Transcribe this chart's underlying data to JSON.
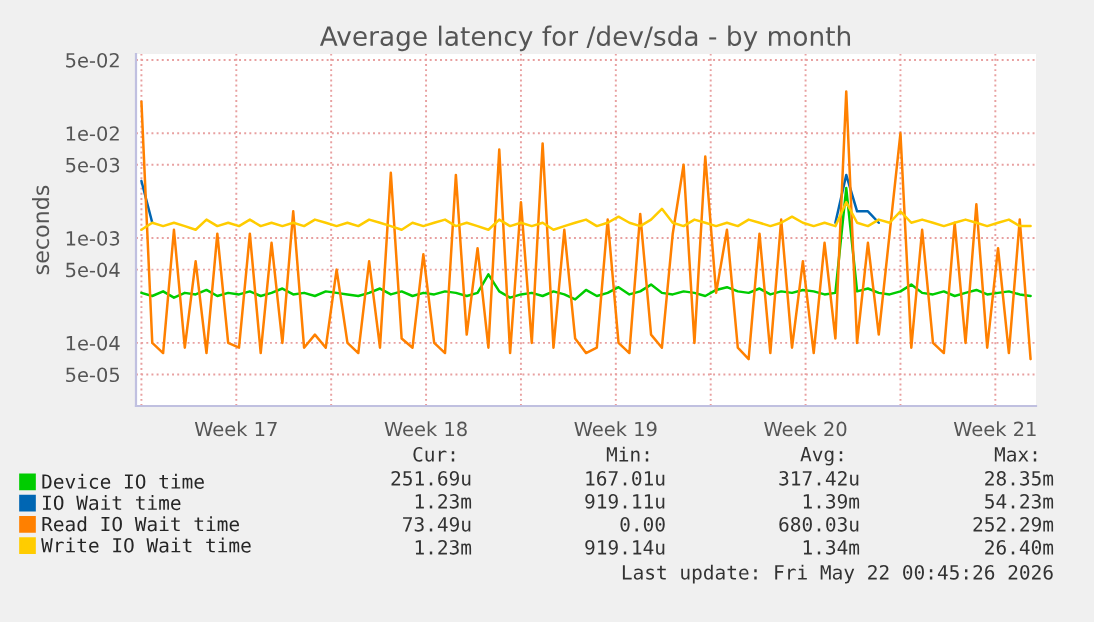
{
  "chart_data": {
    "type": "line",
    "title": "Average latency for /dev/sda - by month",
    "ylabel": "seconds",
    "log": "y",
    "grid": true,
    "legend": "bottom",
    "marker": "none",
    "line_style": "solid",
    "x": [
      "2026-04-20T00:00",
      "2026-04-20T09:36",
      "2026-04-20T19:12",
      "2026-04-21T04:48",
      "2026-04-21T14:24",
      "2026-04-22T00:00",
      "2026-04-22T09:36",
      "2026-04-22T19:12",
      "2026-04-23T04:48",
      "2026-04-23T14:24",
      "2026-04-24T00:00",
      "2026-04-24T09:36",
      "2026-04-24T19:12",
      "2026-04-25T04:48",
      "2026-04-25T14:24",
      "2026-04-26T00:00",
      "2026-04-26T09:36",
      "2026-04-26T19:12",
      "2026-04-27T04:48",
      "2026-04-27T14:24",
      "2026-04-28T00:00",
      "2026-04-28T09:36",
      "2026-04-28T19:12",
      "2026-04-29T04:48",
      "2026-04-29T14:24",
      "2026-04-30T00:00",
      "2026-04-30T09:36",
      "2026-04-30T19:12",
      "2026-05-01T04:48",
      "2026-05-01T14:24",
      "2026-05-02T00:00",
      "2026-05-02T09:36",
      "2026-05-02T19:12",
      "2026-05-03T04:48",
      "2026-05-03T14:24",
      "2026-05-04T00:00",
      "2026-05-04T09:36",
      "2026-05-04T19:12",
      "2026-05-05T04:48",
      "2026-05-05T14:24",
      "2026-05-06T00:00",
      "2026-05-06T09:36",
      "2026-05-06T19:12",
      "2026-05-07T04:48",
      "2026-05-07T14:24",
      "2026-05-08T00:00",
      "2026-05-08T09:36",
      "2026-05-08T19:12",
      "2026-05-09T04:48",
      "2026-05-09T14:24",
      "2026-05-10T00:00",
      "2026-05-10T09:36",
      "2026-05-10T19:12",
      "2026-05-11T04:48",
      "2026-05-11T14:24",
      "2026-05-12T00:00",
      "2026-05-12T09:36",
      "2026-05-12T19:12",
      "2026-05-13T04:48",
      "2026-05-13T14:24",
      "2026-05-14T00:00",
      "2026-05-14T09:36",
      "2026-05-14T19:12",
      "2026-05-15T04:48",
      "2026-05-15T14:24",
      "2026-05-16T00:00",
      "2026-05-16T09:36",
      "2026-05-16T19:12",
      "2026-05-17T04:48",
      "2026-05-17T14:24",
      "2026-05-18T00:00",
      "2026-05-18T09:36",
      "2026-05-18T19:12",
      "2026-05-19T04:48",
      "2026-05-19T14:24",
      "2026-05-20T00:00",
      "2026-05-20T09:36",
      "2026-05-20T19:12",
      "2026-05-21T04:48",
      "2026-05-21T14:24",
      "2026-05-22T00:00",
      "2026-05-22T09:36",
      "2026-05-22T19:12"
    ],
    "xlim": [
      "2026-04-19T19:12",
      "2026-05-23T00:00"
    ],
    "xticks": [
      {
        "value": "2026-04-20",
        "label": null
      },
      {
        "value": "2026-04-23T12:00",
        "label": "Week 17"
      },
      {
        "value": "2026-04-27",
        "label": null
      },
      {
        "value": "2026-04-30T12:00",
        "label": "Week 18"
      },
      {
        "value": "2026-05-04",
        "label": null
      },
      {
        "value": "2026-05-07T12:00",
        "label": "Week 19"
      },
      {
        "value": "2026-05-11",
        "label": null
      },
      {
        "value": "2026-05-14T12:00",
        "label": "Week 20"
      },
      {
        "value": "2026-05-18",
        "label": null
      },
      {
        "value": "2026-05-21T12:00",
        "label": "Week 21"
      }
    ],
    "ylim": [
      2.5e-05,
      0.057
    ],
    "yticks": [
      {
        "value": 5e-05,
        "label": "5e-05"
      },
      {
        "value": 0.0001,
        "label": "1e-04"
      },
      {
        "value": 0.0005,
        "label": "5e-04"
      },
      {
        "value": 0.001,
        "label": "1e-03"
      },
      {
        "value": 0.005,
        "label": "5e-03"
      },
      {
        "value": 0.01,
        "label": "1e-02"
      },
      {
        "value": 0.05,
        "label": "5e-02"
      }
    ],
    "series": [
      {
        "name": "Device IO time",
        "color": "#00cc00",
        "values": [
          0.0003,
          0.00028,
          0.00031,
          0.00027,
          0.0003,
          0.00029,
          0.00032,
          0.00028,
          0.0003,
          0.00029,
          0.00031,
          0.00028,
          0.0003,
          0.00033,
          0.00029,
          0.0003,
          0.00028,
          0.00031,
          0.0003,
          0.00029,
          0.00028,
          0.0003,
          0.00033,
          0.00029,
          0.00031,
          0.00028,
          0.0003,
          0.00029,
          0.00031,
          0.0003,
          0.00028,
          0.0003,
          0.00045,
          0.00031,
          0.00027,
          0.00029,
          0.0003,
          0.00028,
          0.00031,
          0.00029,
          0.00026,
          0.00032,
          0.00028,
          0.0003,
          0.00034,
          0.00029,
          0.00031,
          0.00036,
          0.0003,
          0.00029,
          0.00031,
          0.0003,
          0.00028,
          0.00032,
          0.00034,
          0.00031,
          0.0003,
          0.00033,
          0.00029,
          0.00031,
          0.0003,
          0.00032,
          0.00031,
          0.00029,
          0.0003,
          0.003,
          0.00031,
          0.00033,
          0.0003,
          0.00029,
          0.00031,
          0.00036,
          0.0003,
          0.00029,
          0.00031,
          0.00028,
          0.0003,
          0.00032,
          0.00029,
          0.0003,
          0.00031,
          0.00029,
          0.00028
        ]
      },
      {
        "name": "IO Wait time",
        "color": "#0066b3",
        "values": [
          0.0035,
          0.0014,
          null,
          null,
          null,
          null,
          null,
          null,
          null,
          null,
          null,
          null,
          null,
          null,
          null,
          null,
          null,
          null,
          null,
          null,
          null,
          null,
          null,
          null,
          null,
          null,
          null,
          null,
          null,
          null,
          null,
          null,
          null,
          null,
          null,
          null,
          null,
          null,
          null,
          null,
          null,
          null,
          null,
          null,
          null,
          null,
          null,
          null,
          null,
          null,
          null,
          null,
          null,
          null,
          null,
          null,
          null,
          null,
          null,
          null,
          null,
          null,
          null,
          null,
          0.0014,
          0.004,
          0.0018,
          0.0018,
          0.0014,
          null,
          null,
          null,
          null,
          null,
          null,
          null,
          null,
          null,
          null,
          null,
          null,
          null,
          null
        ]
      },
      {
        "name": "Read IO Wait time",
        "color": "#ff8000",
        "values": [
          0.02,
          0.0001,
          8e-05,
          0.0012,
          9e-05,
          0.0006,
          8e-05,
          0.0011,
          0.0001,
          9e-05,
          0.0011,
          8e-05,
          0.0009,
          0.0001,
          0.0018,
          9e-05,
          0.00012,
          9e-05,
          0.0005,
          0.0001,
          8e-05,
          0.0006,
          9e-05,
          0.0042,
          0.00011,
          9e-05,
          0.0007,
          0.0001,
          8e-05,
          0.004,
          0.00012,
          0.0008,
          9e-05,
          0.007,
          8e-05,
          0.0022,
          0.0001,
          0.008,
          9e-05,
          0.0012,
          0.00011,
          8e-05,
          9e-05,
          0.0015,
          0.0001,
          8e-05,
          0.0017,
          0.00012,
          9e-05,
          0.0011,
          0.005,
          0.0001,
          0.006,
          0.0003,
          0.0012,
          9e-05,
          7e-05,
          0.0011,
          8e-05,
          0.0015,
          9e-05,
          0.0006,
          8e-05,
          0.0009,
          0.00011,
          0.025,
          0.0001,
          0.0009,
          0.00012,
          0.0011,
          0.01,
          9e-05,
          0.0012,
          0.0001,
          8e-05,
          0.0014,
          0.0001,
          0.0021,
          9e-05,
          0.0008,
          8e-05,
          0.0015,
          7e-05
        ]
      },
      {
        "name": "Write IO Wait time",
        "color": "#ffcc00",
        "values": [
          0.0012,
          0.0014,
          0.0013,
          0.0014,
          0.0013,
          0.0012,
          0.0015,
          0.0013,
          0.0014,
          0.0013,
          0.0015,
          0.0013,
          0.0014,
          0.0013,
          0.0014,
          0.0013,
          0.0015,
          0.0014,
          0.0013,
          0.0014,
          0.0013,
          0.0015,
          0.0014,
          0.0013,
          0.0012,
          0.0014,
          0.0013,
          0.0014,
          0.0015,
          0.0013,
          0.0014,
          0.0013,
          0.0012,
          0.0015,
          0.0013,
          0.0014,
          0.0013,
          0.0014,
          0.0012,
          0.0013,
          0.0014,
          0.0015,
          0.0013,
          0.0014,
          0.0016,
          0.0014,
          0.0013,
          0.0015,
          0.0019,
          0.0014,
          0.0013,
          0.0015,
          0.0014,
          0.0013,
          0.0014,
          0.0013,
          0.0015,
          0.0014,
          0.0013,
          0.0014,
          0.0016,
          0.0014,
          0.0013,
          0.0014,
          0.0013,
          0.0022,
          0.0014,
          0.0013,
          0.0015,
          0.0014,
          0.0018,
          0.0014,
          0.0015,
          0.0014,
          0.0013,
          0.0014,
          0.0015,
          0.0014,
          0.0013,
          0.0014,
          0.0015,
          0.0013,
          0.0013
        ]
      }
    ],
    "annotations": [
      "Cur:",
      "Min:",
      "Avg:",
      "Max:",
      "251.69u",
      "167.01u",
      "317.42u",
      "28.35m",
      "1.23m",
      "919.11u",
      "1.39m",
      "54.23m",
      "73.49u",
      "0.00",
      "680.03u",
      "252.29m",
      "1.23m",
      "919.14u",
      "1.34m",
      "26.40m",
      "Last update: Fri May 22 00:45:26 2026"
    ]
  }
}
